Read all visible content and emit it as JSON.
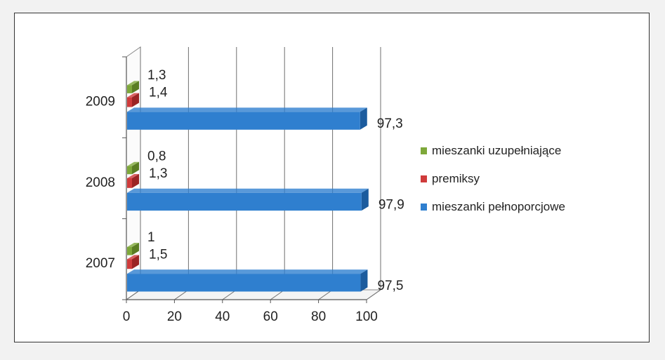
{
  "chart_data": {
    "type": "bar",
    "orientation": "horizontal",
    "style": "3d-clustered",
    "categories": [
      "2009",
      "2008",
      "2007"
    ],
    "series": [
      {
        "name": "mieszanki pełnoporcjowe",
        "values": [
          97.3,
          97.9,
          97.5
        ],
        "labels": [
          "97,3",
          "97,9",
          "97,5"
        ],
        "color": "#2f7fcf",
        "side": "#1c5c9e"
      },
      {
        "name": "premiksy",
        "values": [
          1.4,
          1.3,
          1.5
        ],
        "labels": [
          "1,4",
          "1,3",
          "1,5"
        ],
        "color": "#cf3b3b",
        "side": "#9b2424"
      },
      {
        "name": "mieszanki uzupełniające",
        "values": [
          1.3,
          0.8,
          1
        ],
        "labels": [
          "1,3",
          "0,8",
          "1"
        ],
        "color": "#7ea83a",
        "side": "#5a7d23"
      }
    ],
    "xlim": [
      0,
      100
    ],
    "xticks": [
      "0",
      "20",
      "40",
      "60",
      "80",
      "100"
    ],
    "grid": true,
    "legend_position": "right",
    "title": "",
    "xlabel": "",
    "ylabel": ""
  }
}
